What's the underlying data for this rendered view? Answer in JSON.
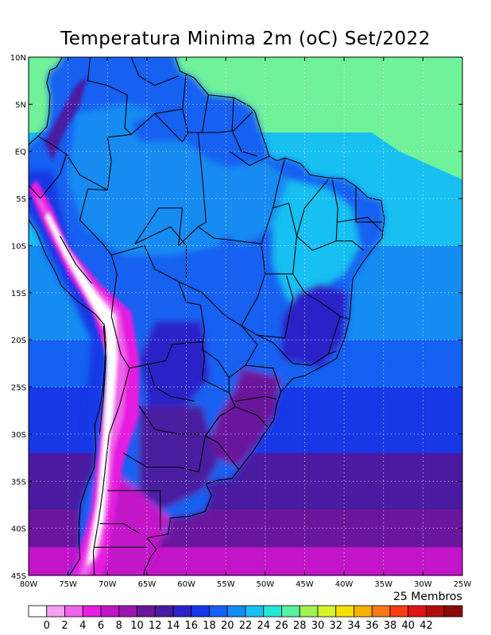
{
  "title": "Temperatura Minima 2m (oC) Set/2022",
  "members_label": "25 Membros",
  "lat_ticks": [
    "10N",
    "5N",
    "EQ",
    "5S",
    "10S",
    "15S",
    "20S",
    "25S",
    "30S",
    "35S",
    "40S",
    "45S"
  ],
  "lon_ticks": [
    "80W",
    "75W",
    "70W",
    "65W",
    "60W",
    "55W",
    "50W",
    "45W",
    "40W",
    "35W",
    "30W",
    "25W"
  ],
  "colorbar": {
    "labels": [
      "0",
      "2",
      "4",
      "6",
      "8",
      "10",
      "12",
      "14",
      "16",
      "18",
      "20",
      "22",
      "24",
      "26",
      "28",
      "30",
      "32",
      "34",
      "36",
      "38",
      "40",
      "42"
    ],
    "colors": [
      "#ffffff",
      "#f7a0f3",
      "#ef62ea",
      "#e51ee0",
      "#c214c8",
      "#9d16b2",
      "#6a169c",
      "#4a1aa0",
      "#2c22c8",
      "#1638e6",
      "#1460f2",
      "#148cf2",
      "#18c0f2",
      "#22e8d8",
      "#58f0a2",
      "#a2f250",
      "#d8f428",
      "#f8e000",
      "#f8b000",
      "#f87818",
      "#f83c14",
      "#e01414",
      "#b40c0c",
      "#8a0a0a"
    ]
  },
  "region_colors": {
    "ocean_north": "#70f29a",
    "ocean_lat_0_10S": "#18c0f2",
    "ocean_lat_10_20S": "#148cf2",
    "ocean_lat_20_25S": "#1460f2",
    "ocean_lat_25_32S": "#1638e6",
    "ocean_lat_32_38S": "#4a1aa0",
    "ocean_lat_38_42S": "#6a169c",
    "ocean_lat_42_45S": "#c214c8",
    "amazon": "#148cf2",
    "northern_highlands": "#1460f2",
    "northeast_interior": "#18c0f2",
    "central_brazil": "#1460f2",
    "mata_atlantica": "#2c22c8",
    "southern_brazil": "#6a169c",
    "andes_high": "#ffffff",
    "andes_mid": "#ef62ea",
    "andes_low": "#e51ee0",
    "patagonia": "#c214c8",
    "pacific_coast": "#1638e6"
  }
}
